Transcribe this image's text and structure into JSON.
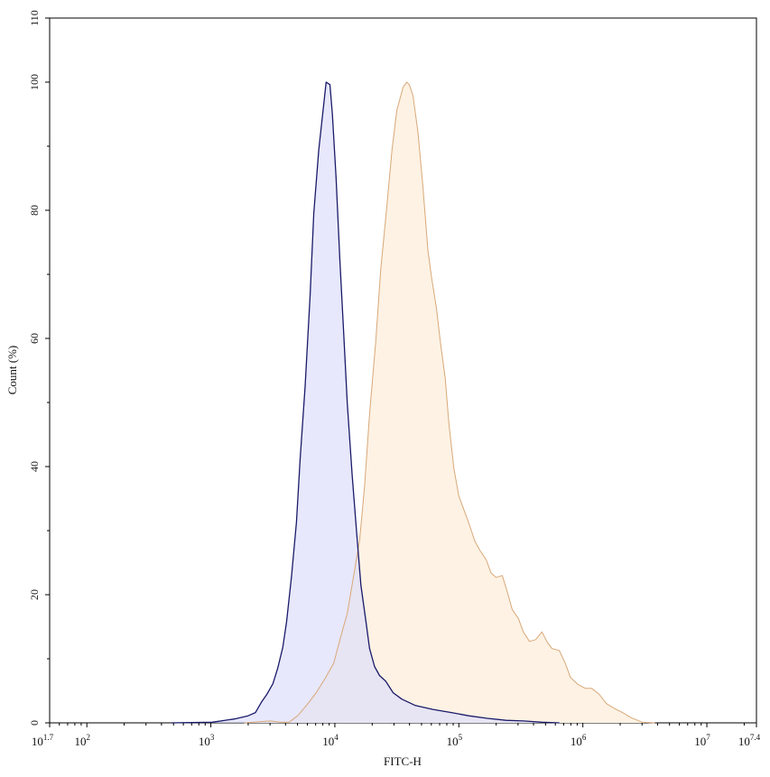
{
  "chart_data": {
    "type": "area",
    "title": "",
    "xlabel": "FITC-H",
    "ylabel": "Count (%)",
    "x_scale": "log10",
    "xlim_exponent": [
      1.7,
      7.4
    ],
    "ylim": [
      0,
      110
    ],
    "grid": false,
    "legend": "none",
    "x_ticks": [
      {
        "exp": 1.7,
        "base": "10",
        "sup": "1.7"
      },
      {
        "exp": 2,
        "base": "10",
        "sup": "2"
      },
      {
        "exp": 3,
        "base": "10",
        "sup": "3"
      },
      {
        "exp": 4,
        "base": "10",
        "sup": "4"
      },
      {
        "exp": 5,
        "base": "10",
        "sup": "5"
      },
      {
        "exp": 6,
        "base": "10",
        "sup": "6"
      },
      {
        "exp": 7,
        "base": "10",
        "sup": "7"
      },
      {
        "exp": 7.4,
        "base": "10",
        "sup": "7.4"
      }
    ],
    "y_ticks": [
      "0",
      "20",
      "40",
      "60",
      "80",
      "100",
      "110"
    ],
    "series": [
      {
        "line_color": "#d8a878",
        "fill_color": "#fdf2e4",
        "log10_x": [
          3.27,
          3.48,
          3.56,
          3.63,
          3.7,
          3.77,
          3.85,
          3.92,
          3.99,
          4.05,
          4.1,
          4.15,
          4.2,
          4.24,
          4.28,
          4.33,
          4.37,
          4.42,
          4.46,
          4.5,
          4.55,
          4.58,
          4.6,
          4.63,
          4.67,
          4.71,
          4.75,
          4.78,
          4.82,
          4.85,
          4.89,
          4.92,
          4.96,
          5.0,
          5.04,
          5.08,
          5.13,
          5.17,
          5.22,
          5.26,
          5.3,
          5.35,
          5.39,
          5.43,
          5.48,
          5.52,
          5.57,
          5.62,
          5.67,
          5.71,
          5.75,
          5.81,
          5.86,
          5.9,
          5.96,
          6.02,
          6.07,
          6.13,
          6.19,
          6.25,
          6.32,
          6.39,
          6.48,
          6.58
        ],
        "count_pct": [
          0,
          0.3,
          0.1,
          0.1,
          1.1,
          2.7,
          4.7,
          6.9,
          9.3,
          13.6,
          17.1,
          22.8,
          28.5,
          37.0,
          48.2,
          59.6,
          70.8,
          80.7,
          89.2,
          95.6,
          99.2,
          100,
          99.6,
          97.9,
          92.2,
          83.7,
          73.8,
          69.5,
          64.6,
          59.6,
          53.8,
          46.7,
          39.7,
          35.4,
          33.3,
          31.2,
          28.3,
          26.9,
          25.5,
          23.4,
          22.7,
          23.0,
          20.5,
          17.7,
          16.3,
          14.2,
          12.7,
          13.0,
          14.2,
          12.7,
          11.6,
          11.3,
          9.2,
          7.1,
          6.0,
          5.4,
          5.4,
          4.5,
          3.0,
          2.3,
          1.6,
          0.8,
          0.1,
          0
        ]
      },
      {
        "line_color": "#1a1a6a",
        "fill_color": "#dcdcfa",
        "log10_x": [
          2.68,
          3.01,
          3.19,
          3.3,
          3.36,
          3.41,
          3.45,
          3.5,
          3.54,
          3.58,
          3.61,
          3.65,
          3.69,
          3.72,
          3.76,
          3.8,
          3.83,
          3.87,
          3.91,
          3.93,
          3.96,
          3.98,
          4.01,
          4.04,
          4.07,
          4.1,
          4.14,
          4.18,
          4.21,
          4.25,
          4.28,
          4.32,
          4.36,
          4.41,
          4.47,
          4.54,
          4.65,
          4.79,
          4.94,
          5.08,
          5.23,
          5.38,
          5.52,
          5.67,
          5.81
        ],
        "count_pct": [
          0,
          0.1,
          0.6,
          1.1,
          1.6,
          3.3,
          4.4,
          6.1,
          8.6,
          11.8,
          15.7,
          22.8,
          31.3,
          41.2,
          52.5,
          66.6,
          79.5,
          89.4,
          96.5,
          100,
          99.6,
          95,
          85.1,
          72.5,
          61.2,
          49.9,
          38.5,
          28.6,
          21.5,
          15.9,
          11.6,
          8.8,
          7.4,
          6.5,
          4.7,
          3.7,
          2.7,
          2.1,
          1.6,
          1.1,
          0.7,
          0.4,
          0.3,
          0.1,
          0
        ]
      }
    ]
  }
}
